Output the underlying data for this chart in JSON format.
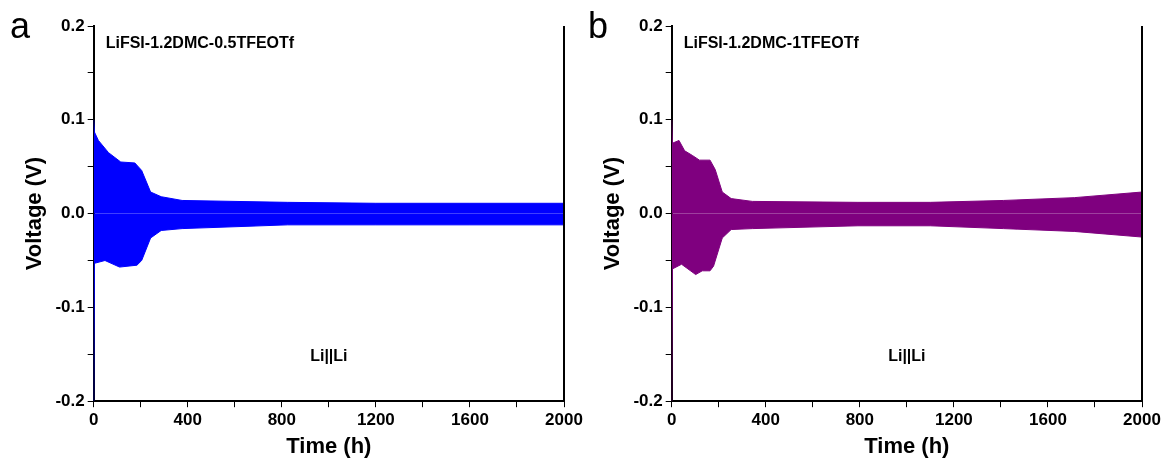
{
  "chart_data": [
    {
      "type": "area",
      "title": "LiFSI-1.2DMC-0.5TFEOTf",
      "xlabel": "Time (h)",
      "ylabel": "Voltage (V)",
      "annotations": [
        "a",
        "Li||Li"
      ],
      "xlim": [
        0,
        2000
      ],
      "xticks": [
        0,
        {
          "value": 200,
          "label": null
        },
        400,
        {
          "value": 600,
          "label": null
        },
        800,
        {
          "value": 1000,
          "label": null
        },
        1200,
        {
          "value": 1400,
          "label": null
        },
        1600,
        {
          "value": 1800,
          "label": null
        },
        2000
      ],
      "ylim": [
        -0.2,
        0.2
      ],
      "yticks": [
        -0.2,
        {
          "value": -0.15,
          "label": null
        },
        -0.1,
        {
          "value": -0.05,
          "label": null
        },
        {
          "value": 0,
          "label": "0.0"
        },
        {
          "value": 0.05,
          "label": null
        },
        0.1,
        {
          "value": 0.15,
          "label": null
        },
        0.2
      ],
      "grid": false,
      "legend": false,
      "series": [
        {
          "color": "#0000ff",
          "x": [
            0,
            3,
            20,
            63,
            115,
            175,
            204,
            242,
            287,
            376,
            825,
            1200,
            1600,
            2000
          ],
          "values": [
            0.1,
            0.087,
            0.078,
            0.065,
            0.055,
            0.054,
            0.046,
            0.023,
            0.018,
            0.014,
            0.012,
            0.011,
            0.011,
            0.011
          ]
        },
        {
          "color": "#0000ff",
          "x": [
            0,
            3,
            48,
            110,
            184,
            204,
            242,
            287,
            376,
            825,
            1200,
            1600,
            2000
          ],
          "values": [
            -0.2,
            -0.053,
            -0.05,
            -0.057,
            -0.055,
            -0.05,
            -0.026,
            -0.018,
            -0.016,
            -0.012,
            -0.012,
            -0.012,
            -0.012
          ]
        }
      ]
    },
    {
      "type": "area",
      "title": "LiFSI-1.2DMC-1TFEOTf",
      "xlabel": "Time (h)",
      "ylabel": "Voltage (V)",
      "annotations": [
        "b",
        "Li||Li"
      ],
      "xlim": [
        0,
        2000
      ],
      "xticks": [
        0,
        {
          "value": 200,
          "label": null
        },
        400,
        {
          "value": 600,
          "label": null
        },
        800,
        {
          "value": 1000,
          "label": null
        },
        1200,
        {
          "value": 1400,
          "label": null
        },
        1600,
        {
          "value": 1800,
          "label": null
        },
        2000
      ],
      "ylim": [
        -0.2,
        0.2
      ],
      "yticks": [
        -0.2,
        {
          "value": -0.15,
          "label": null
        },
        -0.1,
        {
          "value": -0.05,
          "label": null
        },
        {
          "value": 0,
          "label": "0.0"
        },
        {
          "value": 0.05,
          "label": null
        },
        0.1,
        {
          "value": 0.15,
          "label": null
        },
        0.2
      ],
      "grid": false,
      "legend": false,
      "series": [
        {
          "color": "#7f007f",
          "x": [
            0,
            3,
            31,
            55,
            88,
            118,
            163,
            185,
            215,
            253,
            343,
            792,
            1100,
            1411,
            1712,
            2000
          ],
          "values": [
            0.1,
            0.075,
            0.078,
            0.067,
            0.062,
            0.057,
            0.057,
            0.047,
            0.023,
            0.016,
            0.013,
            0.012,
            0.012,
            0.014,
            0.017,
            0.023
          ]
        },
        {
          "color": "#7f007f",
          "x": [
            0,
            3,
            42,
            102,
            130,
            163,
            178,
            215,
            253,
            343,
            792,
            1100,
            1411,
            1712,
            2000
          ],
          "values": [
            -0.2,
            -0.059,
            -0.054,
            -0.065,
            -0.061,
            -0.061,
            -0.056,
            -0.026,
            -0.017,
            -0.016,
            -0.013,
            -0.013,
            -0.016,
            -0.019,
            -0.025
          ]
        }
      ]
    }
  ]
}
